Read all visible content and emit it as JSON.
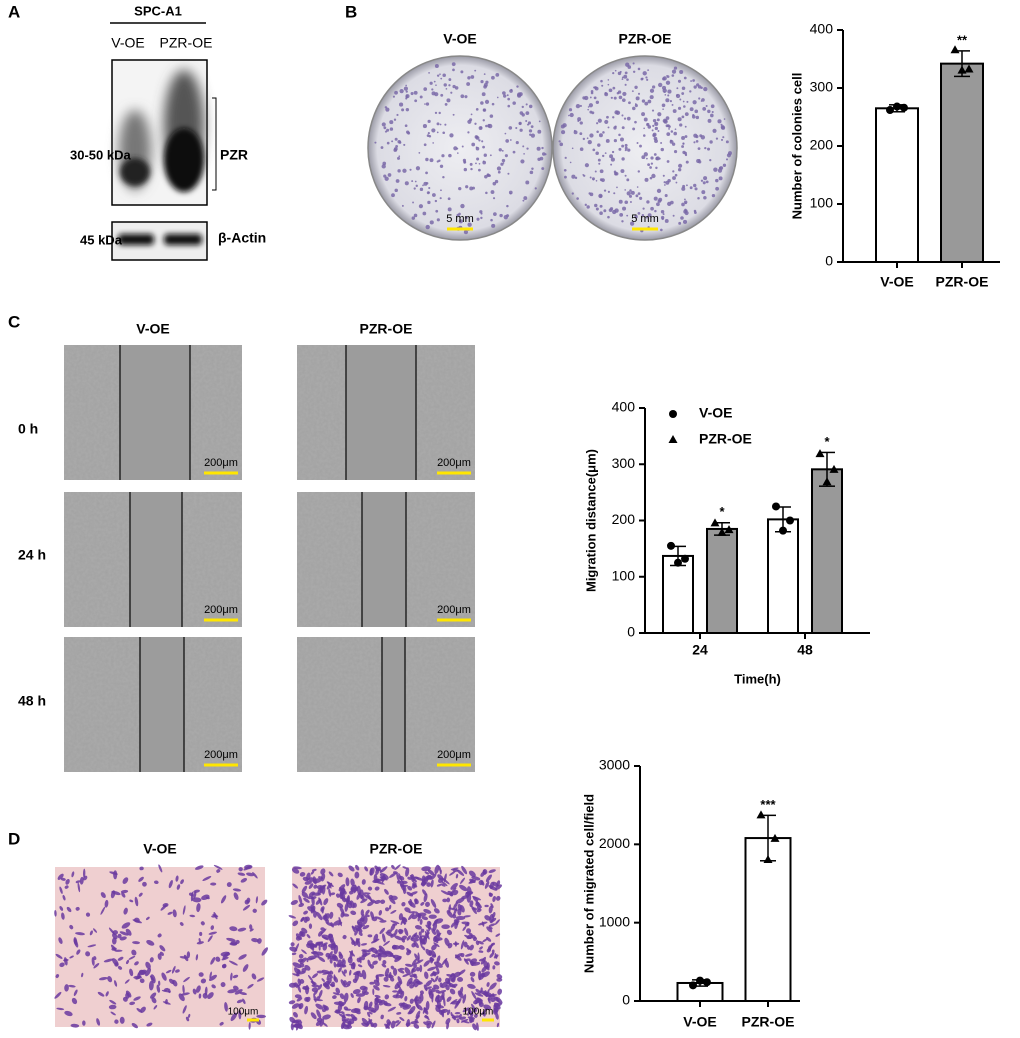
{
  "panels": {
    "A": {
      "letter": "A",
      "cell_line": "SPC-A1",
      "lanes": [
        "V-OE",
        "PZR-OE"
      ],
      "target": {
        "size": "30-50 kDa",
        "name": "PZR"
      },
      "loading_control": {
        "size": "45 kDa",
        "name": "β-Actin"
      }
    },
    "B": {
      "letter": "B",
      "groups": [
        "V-OE",
        "PZR-OE"
      ],
      "scale_bar": "5 mm"
    },
    "C": {
      "letter": "C",
      "groups": [
        "V-OE",
        "PZR-OE"
      ],
      "time_points": [
        "0 h",
        "24 h",
        "48 h"
      ],
      "scale_bar": "200μm"
    },
    "D": {
      "letter": "D",
      "groups": [
        "V-OE",
        "PZR-OE"
      ],
      "scale_bar": "100μm"
    }
  },
  "chart_data": [
    {
      "type": "bar",
      "ylabel": "Number of colonies cell",
      "categories": [
        "V-OE",
        "PZR-OE"
      ],
      "values": [
        265,
        342
      ],
      "errors": [
        6,
        22
      ],
      "points": [
        [
          262,
          268,
          266
        ],
        [
          365,
          330,
          332
        ]
      ],
      "markers": [
        "circle",
        "triangle"
      ],
      "significance": [
        null,
        "**"
      ],
      "colors": [
        "#ffffff",
        "#999999"
      ],
      "ylim": [
        0,
        400
      ],
      "yticks": [
        0,
        100,
        200,
        300,
        400
      ]
    },
    {
      "type": "bar",
      "xlabel": "Time(h)",
      "ylabel": "Migration distance(μm)",
      "categories": [
        "24",
        "48"
      ],
      "series": [
        {
          "name": "V-OE",
          "color": "#ffffff",
          "marker": "circle",
          "values": [
            137,
            202
          ],
          "errors": [
            17,
            22
          ],
          "points": [
            [
              155,
              125,
              132
            ],
            [
              225,
              182,
              200
            ]
          ]
        },
        {
          "name": "PZR-OE",
          "color": "#999999",
          "marker": "triangle",
          "values": [
            185,
            291
          ],
          "errors": [
            11,
            30
          ],
          "points": [
            [
              195,
              178,
              183
            ],
            [
              318,
              268,
              290
            ]
          ],
          "significance": [
            "*",
            "*"
          ]
        }
      ],
      "ylim": [
        0,
        400
      ],
      "yticks": [
        0,
        100,
        200,
        300,
        400
      ],
      "legend": "top-left"
    },
    {
      "type": "bar",
      "ylabel": "Number of migrated cell/field",
      "categories": [
        "V-OE",
        "PZR-OE"
      ],
      "values": [
        230,
        2080
      ],
      "errors": [
        40,
        290
      ],
      "points": [
        [
          200,
          260,
          240
        ],
        [
          2370,
          1800,
          2070
        ]
      ],
      "markers": [
        "circle",
        "triangle"
      ],
      "significance": [
        null,
        "***"
      ],
      "color": "#ffffff",
      "ylim": [
        0,
        3000
      ],
      "yticks": [
        0,
        1000,
        2000,
        3000
      ]
    }
  ]
}
